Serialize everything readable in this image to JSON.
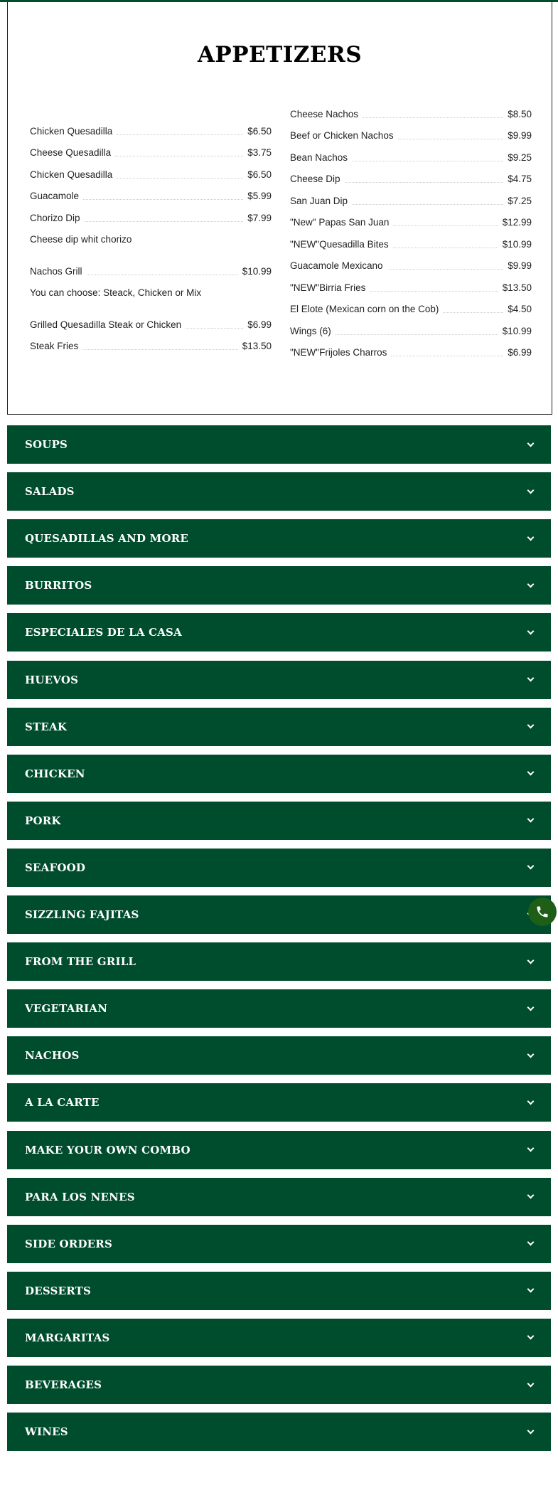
{
  "colors": {
    "accent": "#004d2e",
    "phone_button": "#1e5e17"
  },
  "appetizers": {
    "title": "APPETIZERS",
    "left": [
      {
        "name": "Chicken Quesadilla",
        "price": "$6.50"
      },
      {
        "name": "Cheese Quesadilla",
        "price": "$3.75"
      },
      {
        "name": "Chicken Quesadilla",
        "price": "$6.50"
      },
      {
        "name": "Guacamole",
        "price": "$5.99"
      },
      {
        "name": "Chorizo Dip",
        "price": "$7.99",
        "desc": "Cheese dip whit chorizo"
      },
      {
        "name": "Nachos Grill",
        "price": "$10.99",
        "desc": "You can choose: Steack, Chicken or Mix"
      },
      {
        "name": "Grilled Quesadilla Steak or Chicken",
        "price": "$6.99"
      },
      {
        "name": "Steak Fries",
        "price": "$13.50"
      }
    ],
    "right": [
      {
        "name": "Cheese Nachos",
        "price": "$8.50"
      },
      {
        "name": "Beef or Chicken Nachos",
        "price": "$9.99"
      },
      {
        "name": "Bean Nachos",
        "price": "$9.25"
      },
      {
        "name": "Cheese Dip",
        "price": "$4.75"
      },
      {
        "name": "San Juan Dip",
        "price": "$7.25"
      },
      {
        "name": "\"New\" Papas San Juan",
        "price": "$12.99"
      },
      {
        "name": "\"NEW\"Quesadilla Bites",
        "price": "$10.99"
      },
      {
        "name": "Guacamole Mexicano",
        "price": "$9.99"
      },
      {
        "name": "\"NEW\"Birria Fries",
        "price": "$13.50"
      },
      {
        "name": "El Elote (Mexican corn on the Cob)",
        "price": "$4.50"
      },
      {
        "name": "Wings (6)",
        "price": "$10.99"
      },
      {
        "name": "\"NEW\"Frijoles Charros",
        "price": "$6.99"
      }
    ]
  },
  "sections": [
    "SOUPS",
    "SALADS",
    "QUESADILLAS AND MORE",
    "BURRITOS",
    "ESPECIALES DE LA CASA",
    "HUEVOS",
    "STEAK",
    "CHICKEN",
    "PORK",
    "SEAFOOD",
    "SIZZLING FAJITAS",
    "FROM THE GRILL",
    "VEGETARIAN",
    "NACHOS",
    "A LA CARTE",
    "MAKE YOUR OWN COMBO",
    "PARA LOS NENES",
    "SIDE ORDERS",
    "DESSERTS",
    "MARGARITAS",
    "BEVERAGES",
    "WINES"
  ],
  "icons": {
    "section_toggle": "chevron-down-icon",
    "floating": "phone-icon"
  }
}
